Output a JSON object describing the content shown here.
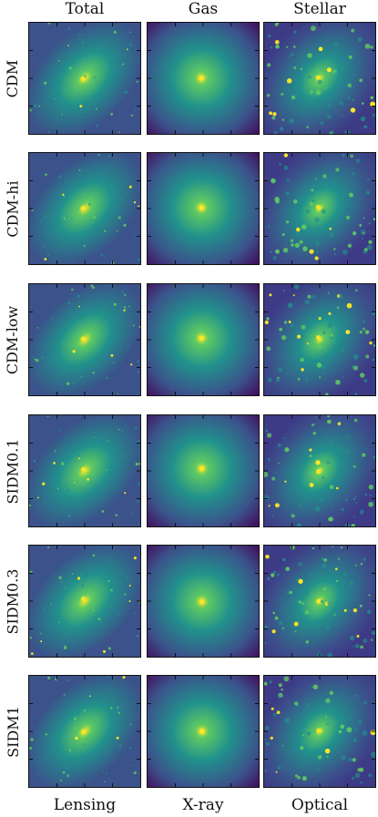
{
  "columns": [
    {
      "title": "Total",
      "footer": "Lensing",
      "kind": "total"
    },
    {
      "title": "Gas",
      "footer": "X-ray",
      "kind": "gas"
    },
    {
      "title": "Stellar",
      "footer": "Optical",
      "kind": "stellar"
    }
  ],
  "rows": [
    {
      "label": "CDM"
    },
    {
      "label": "CDM-hi"
    },
    {
      "label": "CDM-low"
    },
    {
      "label": "SIDM0.1"
    },
    {
      "label": "SIDM0.3"
    },
    {
      "label": "SIDM1"
    }
  ],
  "colormap": {
    "name": "viridis",
    "stops": [
      "#440154",
      "#3b528b",
      "#21918c",
      "#5ec962",
      "#fde725"
    ]
  }
}
